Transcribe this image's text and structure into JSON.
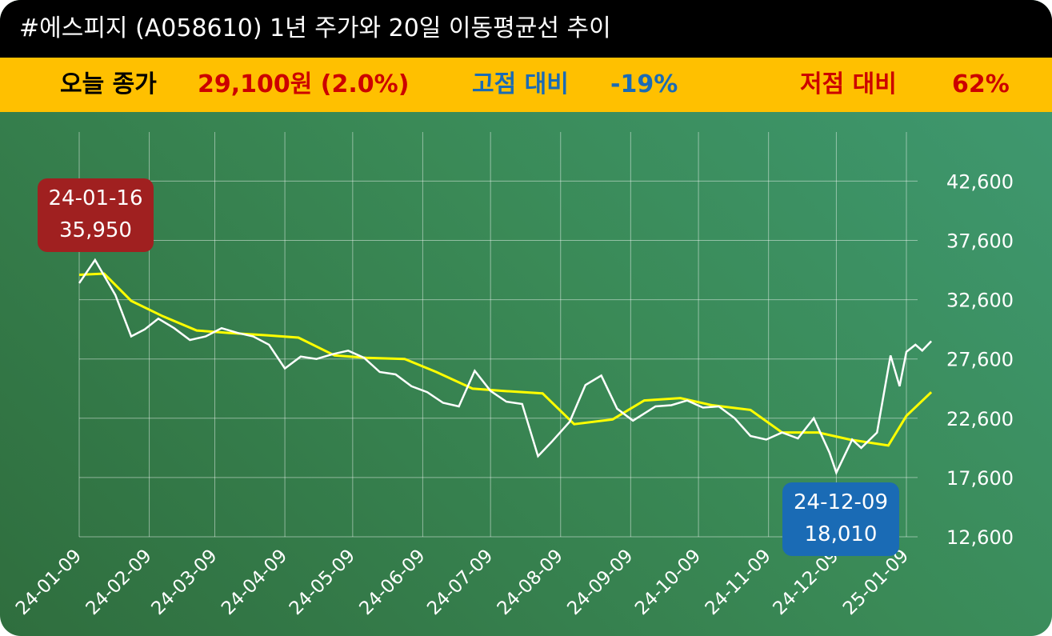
{
  "header": {
    "title": "#에스피지 (A058610) 1년 주가와 20일 이동평균선 추이"
  },
  "summary": {
    "close_label": "오늘 종가",
    "close_value": "29,100원 (2.0%)",
    "high_label": "고점 대비",
    "high_value": "-19%",
    "low_label": "저점 대비",
    "low_value": "62%"
  },
  "colors": {
    "title_bg": "#000000",
    "info_bg": "#ffc000",
    "dark_text": "#000000",
    "red_text": "#cc0000",
    "blue_text": "#1a6bb5",
    "price_line": "#ffffff",
    "ma_line": "#ffff00",
    "high_box": "#a02020",
    "low_box": "#1a6bb5"
  },
  "annotations": {
    "high": {
      "date": "24-01-16",
      "value": "35,950"
    },
    "low": {
      "date": "24-12-09",
      "value": "18,010"
    }
  },
  "chart_data": {
    "type": "line",
    "x_ticks": [
      "24-01-09",
      "24-02-09",
      "24-03-09",
      "24-04-09",
      "24-05-09",
      "24-06-09",
      "24-07-09",
      "24-08-09",
      "24-09-09",
      "24-10-09",
      "24-11-09",
      "24-12-09",
      "25-01-09"
    ],
    "y_ticks": [
      "12,600",
      "17,600",
      "22,600",
      "27,600",
      "32,600",
      "37,600",
      "42,600"
    ],
    "ylim": [
      12600,
      42600
    ],
    "grid": true,
    "series": [
      {
        "key": "price",
        "x": [
          "24-01-09",
          "24-01-16",
          "24-01-25",
          "24-02-01",
          "24-02-07",
          "24-02-13",
          "24-02-20",
          "24-02-27",
          "24-03-05",
          "24-03-12",
          "24-03-19",
          "24-03-26",
          "24-04-02",
          "24-04-09",
          "24-04-16",
          "24-04-23",
          "24-04-30",
          "24-05-07",
          "24-05-14",
          "24-05-21",
          "24-05-28",
          "24-06-04",
          "24-06-11",
          "24-06-18",
          "24-06-25",
          "24-07-02",
          "24-07-09",
          "24-07-16",
          "24-07-23",
          "24-07-30",
          "24-08-05",
          "24-08-13",
          "24-08-20",
          "24-08-27",
          "24-09-03",
          "24-09-10",
          "24-09-20",
          "24-09-27",
          "24-10-04",
          "24-10-11",
          "24-10-18",
          "24-10-25",
          "24-11-01",
          "24-11-08",
          "24-11-15",
          "24-11-22",
          "24-11-29",
          "24-12-06",
          "24-12-09",
          "24-12-16",
          "24-12-20",
          "24-12-27",
          "25-01-02",
          "25-01-06",
          "25-01-09",
          "25-01-13",
          "25-01-16",
          "25-01-20"
        ],
        "values": [
          34000,
          35950,
          33000,
          29500,
          30100,
          31000,
          30200,
          29200,
          29500,
          30200,
          29800,
          29500,
          28800,
          26800,
          27800,
          27600,
          28000,
          28300,
          27700,
          26500,
          26300,
          25300,
          24800,
          23900,
          23600,
          26600,
          24900,
          24000,
          23800,
          19400,
          20600,
          22300,
          25400,
          26200,
          23400,
          22400,
          23600,
          23700,
          24100,
          23500,
          23600,
          22600,
          21100,
          20800,
          21400,
          20900,
          22600,
          19700,
          18010,
          20800,
          20100,
          21400,
          27900,
          25300,
          28200,
          28800,
          28300,
          29100
        ]
      },
      {
        "key": "ma20",
        "x": [
          "24-01-09",
          "24-01-20",
          "24-02-01",
          "24-02-15",
          "24-03-01",
          "24-03-15",
          "24-04-01",
          "24-04-15",
          "24-05-01",
          "24-05-15",
          "24-06-01",
          "24-06-15",
          "24-07-01",
          "24-07-15",
          "24-08-01",
          "24-08-15",
          "24-09-01",
          "24-09-15",
          "24-10-01",
          "24-10-15",
          "24-11-01",
          "24-11-15",
          "24-12-01",
          "24-12-15",
          "25-01-01",
          "25-01-09",
          "25-01-20"
        ],
        "values": [
          34700,
          34800,
          32500,
          31200,
          30000,
          29800,
          29600,
          29400,
          27900,
          27700,
          27600,
          26500,
          25100,
          24900,
          24700,
          22100,
          22500,
          24100,
          24300,
          23700,
          23300,
          21400,
          21400,
          20800,
          20300,
          22800,
          24800
        ]
      }
    ]
  }
}
